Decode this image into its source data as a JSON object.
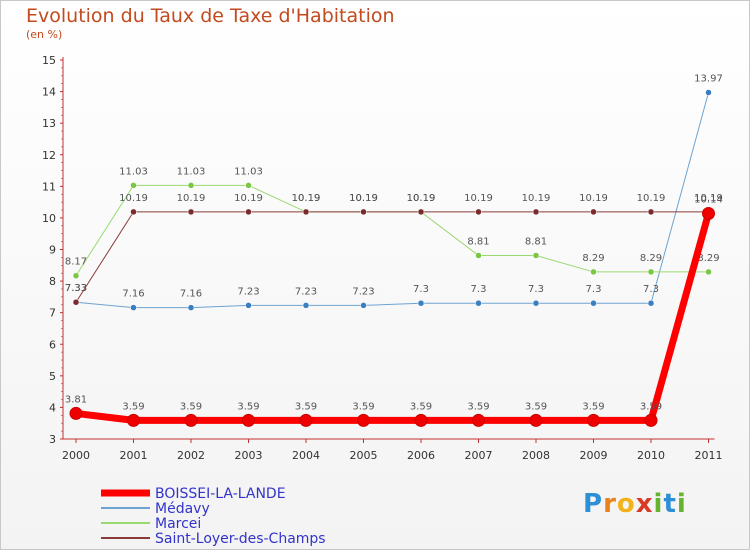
{
  "title": "Evolution du Taux de Taxe d'Habitation",
  "subtitle": "(en %)",
  "logo": {
    "text": "Proxiti",
    "letters": [
      "P",
      "r",
      "o",
      "x",
      "i",
      "t",
      "i"
    ],
    "colors": [
      "#2d8fd5",
      "#e9831e",
      "#f2b31a",
      "#d93a26",
      "#65b32e",
      "#2d8fd5",
      "#65b32e"
    ]
  },
  "chart_data": {
    "type": "line",
    "title": "Evolution du Taux de Taxe d'Habitation",
    "ylabel": "(en %)",
    "xlabel": "",
    "ylim": [
      3,
      15
    ],
    "yticks": [
      "3",
      "4",
      "5",
      "6",
      "7",
      "8",
      "9",
      "10",
      "11",
      "12",
      "13",
      "14",
      "15"
    ],
    "categories": [
      "2000",
      "2001",
      "2002",
      "2003",
      "2004",
      "2005",
      "2006",
      "2007",
      "2008",
      "2009",
      "2010",
      "2011"
    ],
    "series": [
      {
        "name": "Médavy",
        "color": "#6ea3d1",
        "marker": "#3a7ec2",
        "width": 1,
        "values": [
          7.33,
          7.16,
          7.16,
          7.23,
          7.23,
          7.23,
          7.3,
          7.3,
          7.3,
          7.3,
          7.3,
          13.97
        ],
        "labels": [
          "7.33",
          "7.16",
          "7.16",
          "7.23",
          "7.23",
          "7.23",
          "7.3",
          "7.3",
          "7.3",
          "7.3",
          "7.3",
          "13.97"
        ]
      },
      {
        "name": "Marcei",
        "color": "#9ad970",
        "marker": "#7ac744",
        "width": 1,
        "values": [
          8.17,
          11.03,
          11.03,
          11.03,
          10.19,
          10.19,
          10.19,
          8.81,
          8.81,
          8.29,
          8.29,
          8.29
        ],
        "labels": [
          "8.17",
          "11.03",
          "11.03",
          "11.03",
          "10.19",
          "10.19",
          "10.19",
          "8.81",
          "8.81",
          "8.29",
          "8.29",
          "8.29"
        ]
      },
      {
        "name": "Saint-Loyer-des-Champs",
        "color": "#8b3a3a",
        "marker": "#7a2a2a",
        "width": 1,
        "values": [
          7.33,
          10.19,
          10.19,
          10.19,
          10.19,
          10.19,
          10.19,
          10.19,
          10.19,
          10.19,
          10.19,
          10.19
        ],
        "labels": [
          "7.33",
          "10.19",
          "10.19",
          "10.19",
          "10.19",
          "10.19",
          "10.19",
          "10.19",
          "10.19",
          "10.19",
          "10.19",
          "10.19"
        ]
      },
      {
        "name": "BOISSEI-LA-LANDE",
        "color": "#ff0000",
        "marker": "#ee0000",
        "width": 7,
        "values": [
          3.81,
          3.59,
          3.59,
          3.59,
          3.59,
          3.59,
          3.59,
          3.59,
          3.59,
          3.59,
          3.59,
          10.14
        ],
        "labels": [
          "3.81",
          "3.59",
          "3.59",
          "3.59",
          "3.59",
          "3.59",
          "3.59",
          "3.59",
          "3.59",
          "3.59",
          "3.59",
          "10.14"
        ]
      }
    ],
    "legend": [
      {
        "name": "BOISSEI-LA-LANDE",
        "color": "#ff0000",
        "text_color": "#3333cc",
        "width": 7
      },
      {
        "name": "Médavy",
        "color": "#6ea3d1",
        "text_color": "#3333cc",
        "width": 2
      },
      {
        "name": "Marcei",
        "color": "#9ad970",
        "text_color": "#3333cc",
        "width": 2
      },
      {
        "name": "Saint-Loyer-des-Champs",
        "color": "#8b3a3a",
        "text_color": "#3333cc",
        "width": 2
      }
    ],
    "legend_position": "bottom-left",
    "grid": false
  }
}
